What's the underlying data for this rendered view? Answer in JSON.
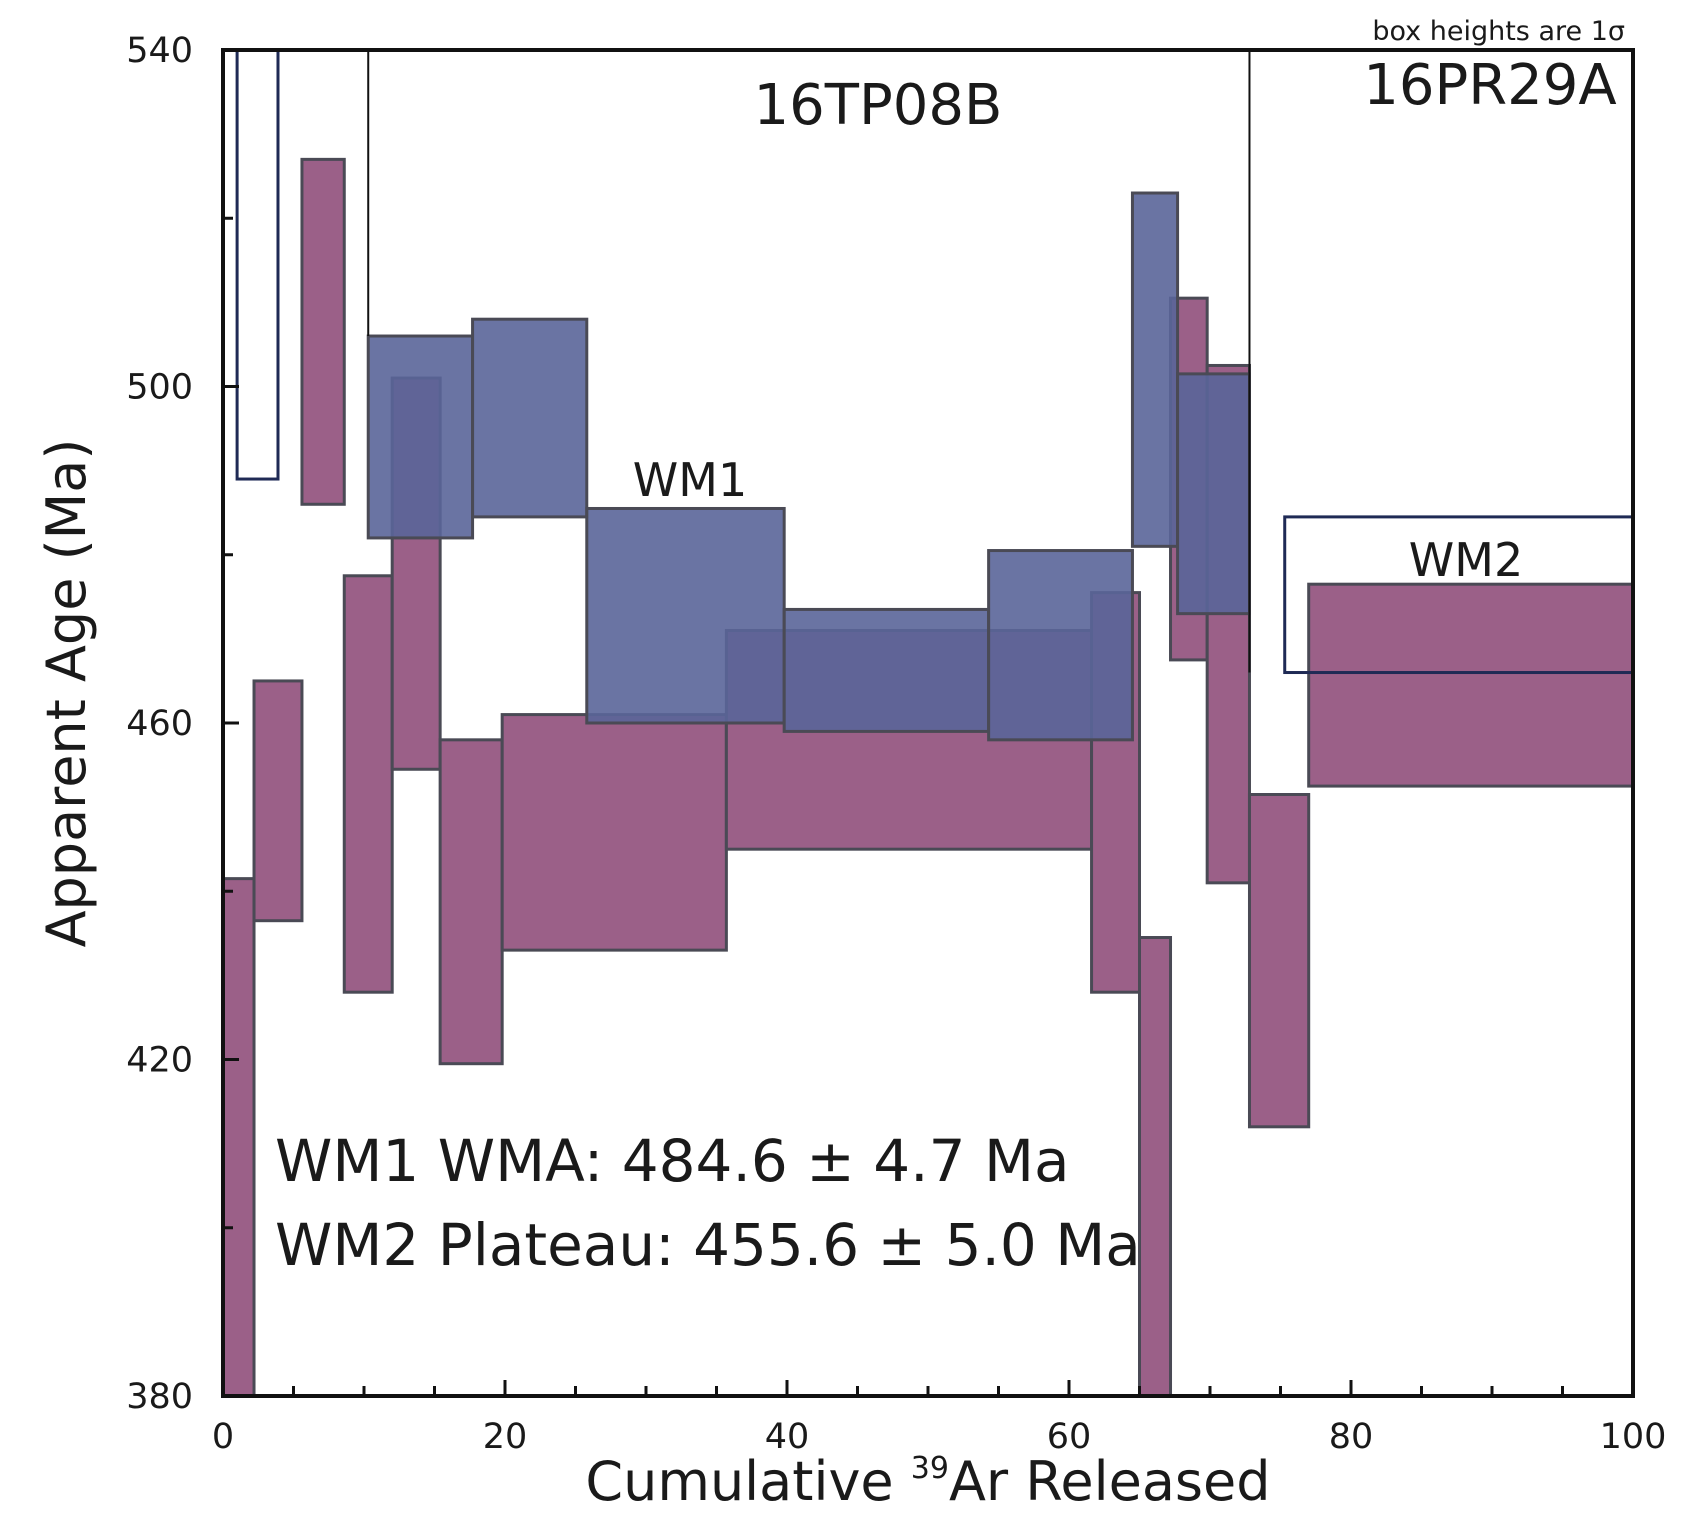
{
  "chart_data": {
    "type": "age-spectrum",
    "xlabel": "Cumulative ",
    "xlabel_sup": "39",
    "xlabel_tail": "Ar Released",
    "ylabel": "Apparent Age (Ma)",
    "xlim": [
      0,
      100
    ],
    "ylim": [
      380,
      540
    ],
    "x_ticks": [
      0,
      20,
      40,
      60,
      80,
      100
    ],
    "y_ticks": [
      380,
      420,
      460,
      500,
      540
    ],
    "note": "box heights are 1σ",
    "sample_labels": [
      "16TP08B",
      "16PR29A"
    ],
    "sample_divider_x": 72.8,
    "series_labels": [
      "WM1",
      "WM2"
    ],
    "results": [
      "WM1 WMA: 484.6 ± 4.7 Ma",
      "WM2 Plateau: 455.6 ± 5.0 Ma"
    ],
    "colors": {
      "purple": "#9b6088",
      "blue": "#5a6599",
      "outline": "#1f2a55"
    },
    "series": [
      {
        "name": "16TP08B",
        "color": "#9b6088",
        "steps": [
          {
            "x0": 0.0,
            "x1": 2.2,
            "lo": 380.0,
            "hi": 441.5
          },
          {
            "x0": 2.2,
            "x1": 5.6,
            "lo": 436.5,
            "hi": 465.0
          },
          {
            "x0": 5.6,
            "x1": 8.6,
            "lo": 486.0,
            "hi": 527.0
          },
          {
            "x0": 8.6,
            "x1": 12.0,
            "lo": 428.0,
            "hi": 477.5
          },
          {
            "x0": 12.0,
            "x1": 15.4,
            "lo": 454.5,
            "hi": 501.0
          },
          {
            "x0": 15.4,
            "x1": 19.8,
            "lo": 419.5,
            "hi": 458.0
          },
          {
            "x0": 19.8,
            "x1": 35.7,
            "lo": 433.0,
            "hi": 461.0
          },
          {
            "x0": 35.7,
            "x1": 61.6,
            "lo": 445.0,
            "hi": 471.0
          },
          {
            "x0": 61.6,
            "x1": 65.0,
            "lo": 428.0,
            "hi": 475.5
          },
          {
            "x0": 65.0,
            "x1": 67.2,
            "lo": 380.0,
            "hi": 434.5
          },
          {
            "x0": 67.2,
            "x1": 69.8,
            "lo": 467.5,
            "hi": 510.5
          },
          {
            "x0": 69.8,
            "x1": 72.8,
            "lo": 441.0,
            "hi": 502.5
          },
          {
            "x0": 72.8,
            "x1": 77.0,
            "lo": 412.0,
            "hi": 451.5
          },
          {
            "x0": 77.0,
            "x1": 100.0,
            "lo": 452.5,
            "hi": 476.5
          }
        ]
      },
      {
        "name": "WM1",
        "color": "#5a6599",
        "steps": [
          {
            "x0": 10.3,
            "x1": 17.7,
            "lo": 482.0,
            "hi": 506.0
          },
          {
            "x0": 17.7,
            "x1": 25.8,
            "lo": 484.5,
            "hi": 508.0
          },
          {
            "x0": 25.8,
            "x1": 39.8,
            "lo": 460.0,
            "hi": 485.5
          },
          {
            "x0": 39.8,
            "x1": 54.3,
            "lo": 459.0,
            "hi": 473.5
          },
          {
            "x0": 54.3,
            "x1": 64.5,
            "lo": 458.0,
            "hi": 480.5
          },
          {
            "x0": 64.5,
            "x1": 67.7,
            "lo": 481.0,
            "hi": 523.0
          },
          {
            "x0": 67.7,
            "x1": 72.8,
            "lo": 473.0,
            "hi": 501.5
          }
        ]
      },
      {
        "name": "open-steps",
        "color": "none",
        "steps": [
          {
            "x0": 1.0,
            "x1": 3.9,
            "lo": 489.0,
            "hi": 540.0
          },
          {
            "x0": 75.3,
            "x1": 100.0,
            "lo": 466.0,
            "hi": 484.5
          }
        ]
      }
    ]
  }
}
